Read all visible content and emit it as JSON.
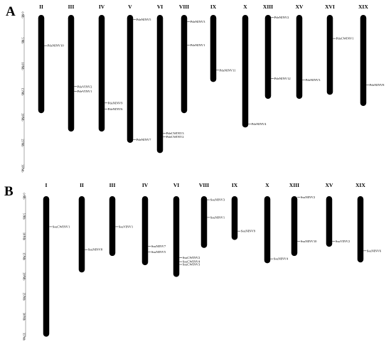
{
  "panels": [
    {
      "letter": "A",
      "scale": {
        "ticks": [
          {
            "mb": 0,
            "label": "0 Mb"
          },
          {
            "mb": 5,
            "label": "5 Mb"
          },
          {
            "mb": 10,
            "label": "10 Mb"
          },
          {
            "mb": 15,
            "label": "15 Mb"
          },
          {
            "mb": 20,
            "label": "20 Mb"
          },
          {
            "mb": 25,
            "label": "25 Mb"
          },
          {
            "mb": 30,
            "label": "30 Mb"
          }
        ]
      },
      "chromosomes": [
        {
          "name": "II",
          "length": 19.2,
          "genes": [
            {
              "name": "PdeNINV10",
              "pos": 6.0
            }
          ]
        },
        {
          "name": "III",
          "length": 22.8,
          "genes": [
            {
              "name": "PdeVINV2",
              "pos": 14.0
            },
            {
              "name": "PdeVINV1",
              "pos": 14.9
            }
          ]
        },
        {
          "name": "IV",
          "length": 22.8,
          "genes": [
            {
              "name": "PdeNINV9",
              "pos": 17.2
            },
            {
              "name": "PdeNINV6",
              "pos": 18.4
            }
          ]
        },
        {
          "name": "V",
          "length": 25.0,
          "genes": [
            {
              "name": "PdeNINV5",
              "pos": 0.9
            },
            {
              "name": "PdeNINV7",
              "pos": 24.4
            }
          ]
        },
        {
          "name": "VI",
          "length": 27.0,
          "genes": [
            {
              "name": "PdeCWINV3",
              "pos": 23.1
            },
            {
              "name": "PdeCWINV2",
              "pos": 23.8
            }
          ]
        },
        {
          "name": "VIII",
          "length": 19.2,
          "genes": [
            {
              "name": "PdeNINV3",
              "pos": 1.3
            },
            {
              "name": "PdeNINV1",
              "pos": 5.9
            }
          ]
        },
        {
          "name": "IX",
          "length": 13.1,
          "genes": [
            {
              "name": "PdeNINV11",
              "pos": 10.8
            }
          ]
        },
        {
          "name": "X",
          "length": 22.0,
          "genes": [
            {
              "name": "PdeNINV4",
              "pos": 21.3
            }
          ]
        },
        {
          "name": "XIII",
          "length": 16.4,
          "genes": [
            {
              "name": "PdeNINV2",
              "pos": 0.5
            },
            {
              "name": "PdeNINV12",
              "pos": 12.4
            }
          ]
        },
        {
          "name": "XV",
          "length": 16.4,
          "genes": [
            {
              "name": "PdeNINV3",
              "pos": 12.7
            }
          ]
        },
        {
          "name": "XVI",
          "length": 15.6,
          "genes": [
            {
              "name": "PdeCWINV1",
              "pos": 4.6
            }
          ]
        },
        {
          "name": "XIX",
          "length": 17.8,
          "genes": [
            {
              "name": "PdeNINV8",
              "pos": 13.7
            }
          ]
        }
      ]
    },
    {
      "letter": "B",
      "scale": {
        "ticks": [
          {
            "mb": 0,
            "label": "0 Mb"
          },
          {
            "mb": 5,
            "label": "5 Mb"
          },
          {
            "mb": 10,
            "label": "10 Mb"
          },
          {
            "mb": 15,
            "label": "15 Mb"
          },
          {
            "mb": 20,
            "label": "20 Mb"
          },
          {
            "mb": 25,
            "label": "25 Mb"
          },
          {
            "mb": 30,
            "label": "30 Mb"
          },
          {
            "mb": 35,
            "label": "35 Mb"
          }
        ]
      },
      "chromosomes": [
        {
          "name": "I",
          "length": 35.0,
          "genes": [
            {
              "name": "SsuCWINV1",
              "pos": 7.6
            }
          ]
        },
        {
          "name": "II",
          "length": 19.0,
          "genes": [
            {
              "name": "SsuNINV8",
              "pos": 13.3
            }
          ]
        },
        {
          "name": "III",
          "length": 14.9,
          "genes": [
            {
              "name": "SsuVINV1",
              "pos": 7.6
            }
          ]
        },
        {
          "name": "IV",
          "length": 17.2,
          "genes": [
            {
              "name": "SsuNINV7",
              "pos": 12.5
            },
            {
              "name": "SsuNINV5",
              "pos": 13.9
            }
          ]
        },
        {
          "name": "VI",
          "length": 20.1,
          "genes": [
            {
              "name": "SsuCWINV2",
              "pos": 15.3
            },
            {
              "name": "SsuCWINV4",
              "pos": 16.3
            },
            {
              "name": "SsuCWINV3",
              "pos": 17.0
            }
          ]
        },
        {
          "name": "VIII",
          "length": 12.9,
          "genes": [
            {
              "name": "SsuNINV3",
              "pos": 0.9
            },
            {
              "name": "SsuNINV1",
              "pos": 5.3
            }
          ]
        },
        {
          "name": "IX",
          "length": 10.9,
          "genes": [
            {
              "name": "SsuNINV9",
              "pos": 8.7
            }
          ]
        },
        {
          "name": "X",
          "length": 16.7,
          "genes": [
            {
              "name": "SsuNINV4",
              "pos": 15.6
            }
          ]
        },
        {
          "name": "XIII",
          "length": 14.9,
          "genes": [
            {
              "name": "SsuNINV2",
              "pos": 0.3
            },
            {
              "name": "SsuNINV10",
              "pos": 11.2
            }
          ]
        },
        {
          "name": "XV",
          "length": 12.6,
          "genes": [
            {
              "name": "SsuVINV2",
              "pos": 11.2
            }
          ]
        },
        {
          "name": "XIX",
          "length": 16.5,
          "genes": [
            {
              "name": "SsuNINV6",
              "pos": 13.6
            }
          ]
        }
      ]
    }
  ]
}
